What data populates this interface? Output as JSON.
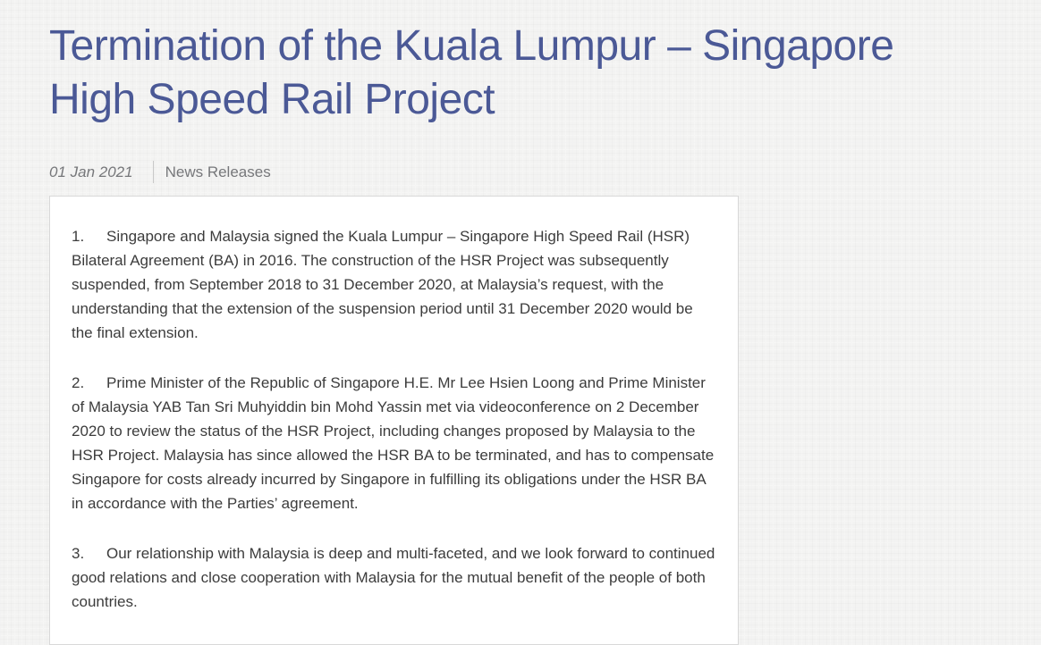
{
  "page": {
    "title": "Termination of the Kuala Lumpur – Singapore High Speed Rail Project",
    "meta": {
      "date": "01 Jan 2021",
      "category": "News Releases"
    },
    "article": {
      "paragraphs": [
        {
          "num": "1.",
          "text": "Singapore and Malaysia signed the Kuala Lumpur – Singapore High Speed Rail (HSR) Bilateral Agreement (BA) in 2016. The construction of the HSR Project was subsequently suspended, from September 2018 to 31 December 2020, at Malaysia’s request, with the understanding that the extension of the suspension period until 31 December 2020 would be the final extension."
        },
        {
          "num": "2.",
          "text": "Prime Minister of the Republic of Singapore H.E. Mr Lee Hsien Loong and Prime Minister of Malaysia YAB Tan Sri Muhyiddin bin Mohd Yassin met via videoconference on 2 December 2020 to review the status of the HSR Project, including changes proposed by Malaysia to the HSR Project. Malaysia has since allowed the HSR BA to be terminated, and has to compensate Singapore for costs already incurred by Singapore in fulfilling its obligations under the HSR BA in accordance with the Parties’ agreement."
        },
        {
          "num": "3.",
          "text": "Our relationship with Malaysia is deep and multi-faceted, and we look forward to continued good relations and close cooperation with Malaysia for the mutual benefit of the people of both countries."
        }
      ]
    }
  },
  "colors": {
    "heading": "#4b5996",
    "body_text": "#3c3c3c",
    "meta_text": "#76777a",
    "background": "#f3f3f2",
    "box_border": "#d8d8d8",
    "box_background": "#ffffff",
    "divider": "#c9c9c9"
  }
}
